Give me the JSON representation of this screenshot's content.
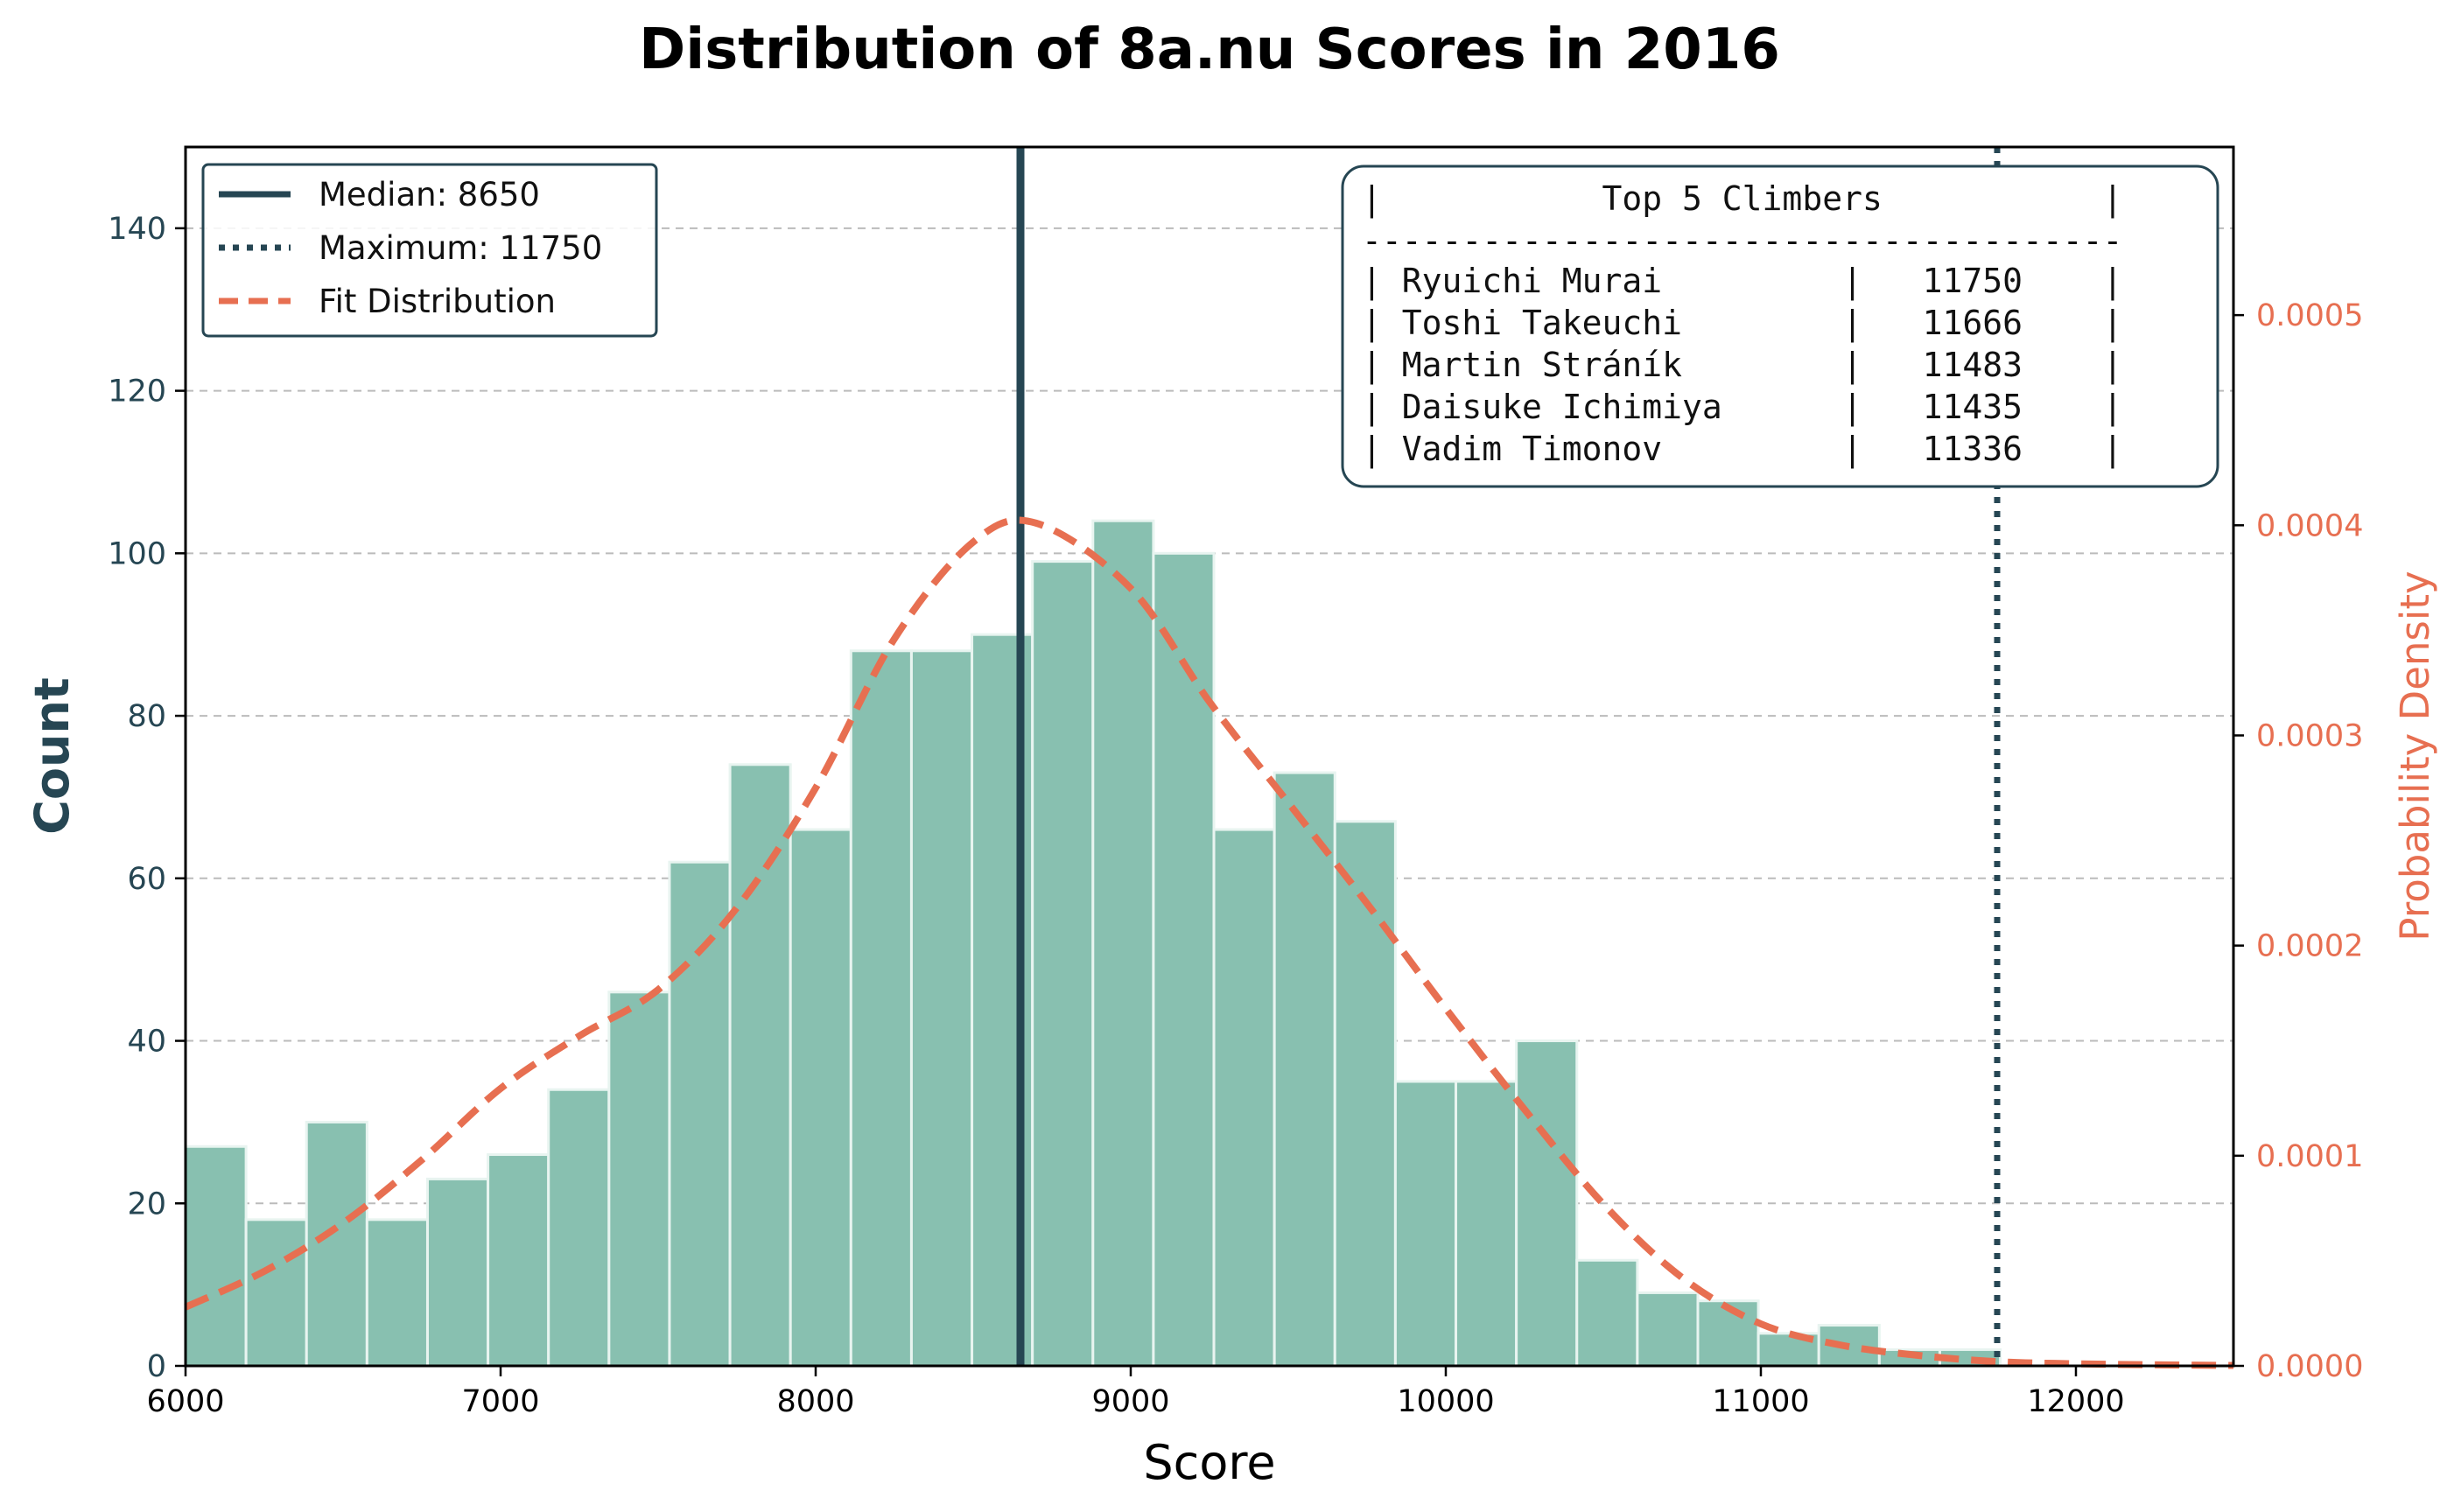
{
  "chart_data": {
    "type": "bar",
    "title": "Distribution of 8a.nu Scores in 2016",
    "xlabel": "Score",
    "ylabel": "Count",
    "y2label": "Probability Density",
    "xlim": [
      6000,
      12500
    ],
    "ylim": [
      0,
      150
    ],
    "y2lim": [
      0,
      0.00058
    ],
    "grid": "horizontal-dashed",
    "legend_position": "top-left",
    "x_ticks": [
      "6000",
      "7000",
      "8000",
      "9000",
      "10000",
      "11000",
      "12000"
    ],
    "y_ticks": [
      "0",
      "20",
      "40",
      "60",
      "80",
      "100",
      "120",
      "140"
    ],
    "y2_ticks": [
      "0.0000",
      "0.0001",
      "0.0002",
      "0.0003",
      "0.0004",
      "0.0005"
    ],
    "bin_width": 192,
    "bins": [
      {
        "x0": 6000,
        "count": 27
      },
      {
        "x0": 6192,
        "count": 18
      },
      {
        "x0": 6384,
        "count": 30
      },
      {
        "x0": 6576,
        "count": 18
      },
      {
        "x0": 6768,
        "count": 23
      },
      {
        "x0": 6960,
        "count": 26
      },
      {
        "x0": 7152,
        "count": 34
      },
      {
        "x0": 7344,
        "count": 46
      },
      {
        "x0": 7536,
        "count": 62
      },
      {
        "x0": 7728,
        "count": 74
      },
      {
        "x0": 7920,
        "count": 66
      },
      {
        "x0": 8112,
        "count": 88
      },
      {
        "x0": 8304,
        "count": 88
      },
      {
        "x0": 8496,
        "count": 90
      },
      {
        "x0": 8688,
        "count": 99
      },
      {
        "x0": 8880,
        "count": 104
      },
      {
        "x0": 9072,
        "count": 100
      },
      {
        "x0": 9264,
        "count": 66
      },
      {
        "x0": 9456,
        "count": 73
      },
      {
        "x0": 9648,
        "count": 67
      },
      {
        "x0": 9840,
        "count": 35
      },
      {
        "x0": 10032,
        "count": 35
      },
      {
        "x0": 10224,
        "count": 40
      },
      {
        "x0": 10416,
        "count": 13
      },
      {
        "x0": 10608,
        "count": 9
      },
      {
        "x0": 10800,
        "count": 8
      },
      {
        "x0": 10992,
        "count": 4
      },
      {
        "x0": 11184,
        "count": 5
      },
      {
        "x0": 11376,
        "count": 2
      },
      {
        "x0": 11568,
        "count": 2
      }
    ],
    "fit_density": [
      [
        6000,
        2.8e-05
      ],
      [
        6250,
        4.5e-05
      ],
      [
        6500,
        6.8e-05
      ],
      [
        6750,
        9.8e-05
      ],
      [
        7000,
        0.000132
      ],
      [
        7250,
        0.000157
      ],
      [
        7500,
        0.000179
      ],
      [
        7750,
        0.000218
      ],
      [
        8000,
        0.000275
      ],
      [
        8250,
        0.000346
      ],
      [
        8500,
        0.000392
      ],
      [
        8700,
        0.000401
      ],
      [
        9000,
        0.00037
      ],
      [
        9250,
        0.000316
      ],
      [
        9500,
        0.000268
      ],
      [
        9750,
        0.00022
      ],
      [
        10000,
        0.00017
      ],
      [
        10250,
        0.000122
      ],
      [
        10500,
        7.7e-05
      ],
      [
        10750,
        4.2e-05
      ],
      [
        11000,
        2e-05
      ],
      [
        11250,
        1e-05
      ],
      [
        11500,
        5e-06
      ],
      [
        11750,
        2e-06
      ],
      [
        12000,
        1e-06
      ],
      [
        12250,
        5e-07
      ],
      [
        12500,
        2e-07
      ]
    ],
    "median": 8650,
    "maximum": 11750,
    "legend": [
      {
        "label": "Median: 8650",
        "style": "solid"
      },
      {
        "label": "Maximum: 11750",
        "style": "dotted"
      },
      {
        "label": "Fit Distribution",
        "style": "dashed"
      }
    ],
    "top_climbers": {
      "title_line": "|           Top 5 Climbers           |",
      "separator": "--------------------------------------",
      "rows": [
        "| Ryuichi Murai         |   11750    |",
        "| Toshi Takeuchi        |   11666    |",
        "| Martin Stráník        |   11483    |",
        "| Daisuke Ichimiya      |   11435    |",
        "| Vadim Timonov         |   11336    |"
      ]
    },
    "colors": {
      "bar_fill": "#88c0b0",
      "bar_edge": "#e8f4f0",
      "median_line": "#264653",
      "max_line": "#264653",
      "fit_line": "#e76f51",
      "left_axis_text": "#264653",
      "right_axis_text": "#e76f51",
      "grid": "#bbbbbb"
    }
  }
}
